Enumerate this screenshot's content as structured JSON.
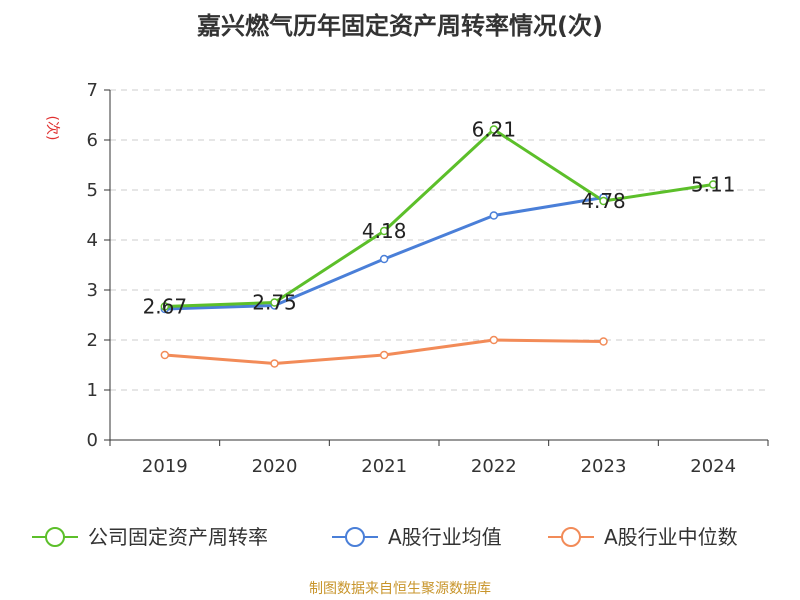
{
  "chart_data": {
    "type": "line",
    "title": "嘉兴燃气历年固定资产周转率情况(次)",
    "ylabel": "(次)",
    "xlabel": "",
    "categories": [
      "2019",
      "2020",
      "2021",
      "2022",
      "2023",
      "2024"
    ],
    "ylim": [
      0,
      7
    ],
    "yticks": [
      "0",
      "1",
      "2",
      "3",
      "4",
      "5",
      "6",
      "7"
    ],
    "grid": true,
    "legend_position": "bottom",
    "series": [
      {
        "name": "公司固定资产周转率",
        "color": "#5cbf2a",
        "values": [
          2.67,
          2.75,
          4.18,
          6.21,
          4.78,
          5.11
        ],
        "labels": [
          "2.67",
          "2.75",
          "4.18",
          "6.21",
          "4.78",
          "5.11"
        ]
      },
      {
        "name": "A股行业均值",
        "color": "#4a7fd8",
        "values": [
          2.62,
          2.69,
          3.62,
          4.49,
          4.85,
          null
        ],
        "labels": []
      },
      {
        "name": "A股行业中位数",
        "color": "#f28b58",
        "values": [
          1.7,
          1.53,
          1.7,
          2.0,
          1.97,
          null
        ],
        "labels": []
      }
    ]
  },
  "unit_color": "#e03030",
  "source_note": "制图数据来自恒生聚源数据库"
}
